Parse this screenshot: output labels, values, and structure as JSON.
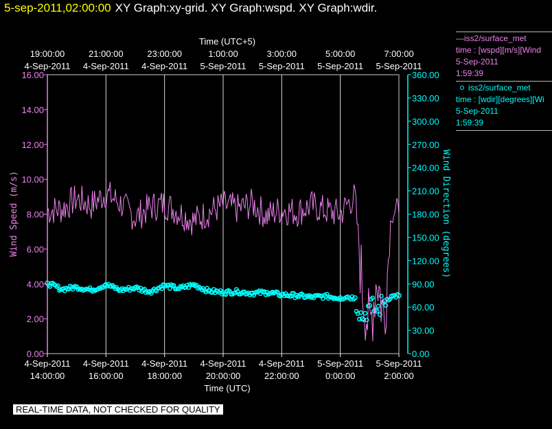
{
  "header": {
    "datetime": "5-sep-2011,02:00:00",
    "titles": "XY Graph:xy-grid.  XY Graph:wspd.  XY Graph:wdir."
  },
  "legend": {
    "wspd": {
      "name": "iss2/surface_met",
      "desc": "time : [wspd][m/s][Wind",
      "date": "5-Sep-2011",
      "time": "1:59:39",
      "color": "#ee82ee"
    },
    "wdir": {
      "name": "iss2/surface_met",
      "desc": "time : [wdir][degrees][Wi",
      "date": "5-Sep-2011",
      "time": "1:59:39",
      "color": "#00ffff"
    }
  },
  "footer_note": "REAL-TIME DATA, NOT CHECKED FOR QUALITY",
  "chart_data": {
    "type": "line",
    "x_axis_bottom": {
      "label": "Time (UTC)",
      "tick_dates": [
        "4-Sep-2011",
        "4-Sep-2011",
        "4-Sep-2011",
        "4-Sep-2011",
        "4-Sep-2011",
        "5-Sep-2011",
        "5-Sep-2011"
      ],
      "tick_times": [
        "14:00:00",
        "16:00:00",
        "18:00:00",
        "20:00:00",
        "22:00:00",
        "0:00:00",
        "2:00:00"
      ]
    },
    "x_axis_top": {
      "label": "Time (UTC+5)",
      "tick_times": [
        "19:00:00",
        "21:00:00",
        "23:00:00",
        "1:00:00",
        "3:00:00",
        "5:00:00",
        "7:00:00"
      ],
      "tick_dates": [
        "4-Sep-2011",
        "4-Sep-2011",
        "4-Sep-2011",
        "5-Sep-2011",
        "5-Sep-2011",
        "5-Sep-2011",
        "5-Sep-2011"
      ]
    },
    "y_left": {
      "label": "Wind Speed (m/s)",
      "ylim": [
        0,
        16
      ],
      "ticks": [
        "0.00",
        "2.00",
        "4.00",
        "6.00",
        "8.00",
        "10.00",
        "12.00",
        "14.00",
        "16.00"
      ]
    },
    "y_right": {
      "label": "Wind Direction (degrees)",
      "ylim": [
        0,
        360
      ],
      "ticks": [
        "0.00",
        "30.00",
        "60.00",
        "90.00",
        "120.00",
        "150.00",
        "180.00",
        "210.00",
        "240.00",
        "270.00",
        "300.00",
        "330.00",
        "360.00"
      ]
    },
    "xlim": [
      "2011-09-04 14:00",
      "2011-09-05 02:00"
    ],
    "grid": "vertical",
    "series": [
      {
        "name": "iss2/surface_met",
        "variable": "wspd",
        "axis": "left",
        "style": "line",
        "color": "#ee82ee",
        "x": [
          "2011-09-04 14:00",
          "2011-09-04 14:30",
          "2011-09-04 15:00",
          "2011-09-04 15:30",
          "2011-09-04 16:00",
          "2011-09-04 16:30",
          "2011-09-04 17:00",
          "2011-09-04 17:30",
          "2011-09-04 18:00",
          "2011-09-04 18:30",
          "2011-09-04 19:00",
          "2011-09-04 19:30",
          "2011-09-04 20:00",
          "2011-09-04 20:30",
          "2011-09-04 21:00",
          "2011-09-04 21:30",
          "2011-09-04 22:00",
          "2011-09-04 22:30",
          "2011-09-04 23:00",
          "2011-09-04 23:30",
          "2011-09-05 00:00",
          "2011-09-05 00:15",
          "2011-09-05 00:30",
          "2011-09-05 00:45",
          "2011-09-05 01:00",
          "2011-09-05 01:15",
          "2011-09-05 01:30",
          "2011-09-05 01:45",
          "2011-09-05 02:00"
        ],
        "values": [
          8.2,
          8.3,
          8.9,
          8.5,
          9.2,
          8.6,
          7.8,
          8.4,
          8.6,
          8.1,
          7.6,
          8.1,
          8.5,
          8.3,
          8.6,
          7.9,
          8.3,
          8.1,
          8.5,
          8.2,
          8.0,
          8.6,
          9.0,
          3.8,
          1.3,
          4.5,
          2.0,
          8.3,
          8.0
        ]
      },
      {
        "name": "iss2/surface_met",
        "variable": "wdir",
        "axis": "right",
        "style": "markers",
        "color": "#00ffff",
        "x": [
          "2011-09-04 14:00",
          "2011-09-04 14:30",
          "2011-09-04 15:00",
          "2011-09-04 15:30",
          "2011-09-04 16:00",
          "2011-09-04 16:30",
          "2011-09-04 17:00",
          "2011-09-04 17:30",
          "2011-09-04 18:00",
          "2011-09-04 18:30",
          "2011-09-04 19:00",
          "2011-09-04 19:30",
          "2011-09-04 20:00",
          "2011-09-04 20:30",
          "2011-09-04 21:00",
          "2011-09-04 21:30",
          "2011-09-04 22:00",
          "2011-09-04 22:30",
          "2011-09-04 23:00",
          "2011-09-04 23:30",
          "2011-09-05 00:00",
          "2011-09-05 00:15",
          "2011-09-05 00:30",
          "2011-09-05 00:45",
          "2011-09-05 01:00",
          "2011-09-05 01:15",
          "2011-09-05 01:30",
          "2011-09-05 01:45",
          "2011-09-05 02:00"
        ],
        "values": [
          91,
          83,
          86,
          82,
          89,
          82,
          85,
          80,
          88,
          84,
          89,
          81,
          79,
          80,
          78,
          79,
          76,
          75,
          73,
          74,
          72,
          73,
          72,
          45,
          62,
          55,
          68,
          74,
          75
        ]
      }
    ]
  }
}
